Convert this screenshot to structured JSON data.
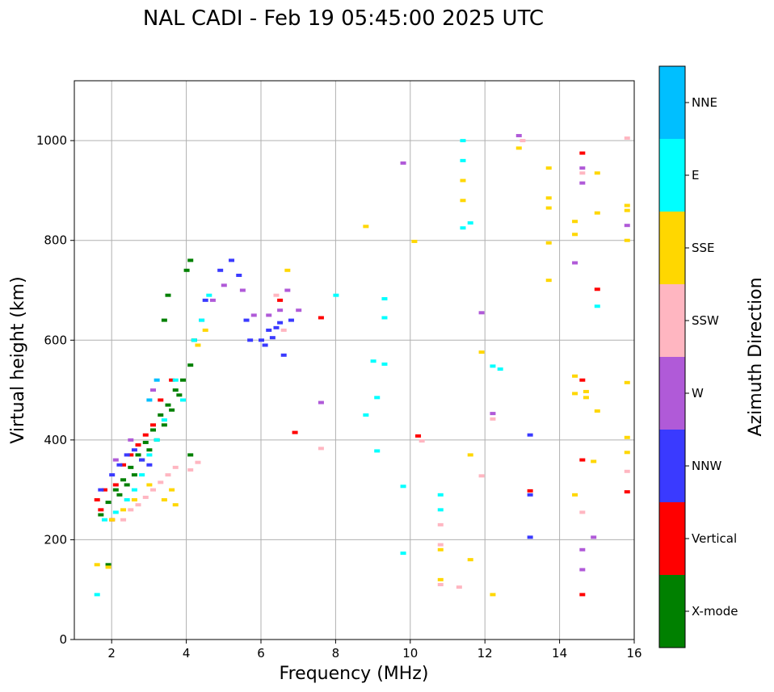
{
  "chart_data": {
    "type": "scatter",
    "title": "NAL CADI - Feb 19 05:45:00 2025 UTC",
    "xlabel": "Frequency (MHz)",
    "ylabel": "Virtual height (km)",
    "xlim": [
      1,
      16
    ],
    "ylim": [
      0,
      1120
    ],
    "xticks": [
      2,
      4,
      6,
      8,
      10,
      12,
      14,
      16
    ],
    "xtick_labels": [
      "2",
      "4",
      "6",
      "8",
      "10",
      "12",
      "14",
      "16"
    ],
    "yticks": [
      0,
      200,
      400,
      600,
      800,
      1000
    ],
    "ytick_labels": [
      "0",
      "200",
      "400",
      "600",
      "800",
      "1000"
    ],
    "grid": true,
    "colorbar": {
      "title": "Azimuth Direction",
      "categories": [
        "X-mode",
        "Vertical",
        "NNW",
        "W",
        "SSW",
        "SSE",
        "E",
        "NNE"
      ],
      "colors": [
        "#008000",
        "#ff0000",
        "#3a3aff",
        "#b05ad8",
        "#ffb6c1",
        "#ffd700",
        "#00ffff",
        "#00bfff"
      ]
    },
    "series": [
      {
        "name": "X-mode",
        "points": [
          [
            1.7,
            250
          ],
          [
            1.9,
            275
          ],
          [
            2.1,
            300
          ],
          [
            2.3,
            320
          ],
          [
            2.5,
            345
          ],
          [
            2.7,
            370
          ],
          [
            2.9,
            395
          ],
          [
            3.1,
            420
          ],
          [
            3.3,
            450
          ],
          [
            3.5,
            470
          ],
          [
            3.7,
            500
          ],
          [
            3.9,
            520
          ],
          [
            4.1,
            550
          ],
          [
            4.2,
            600
          ],
          [
            3.4,
            640
          ],
          [
            3.5,
            690
          ],
          [
            4.0,
            740
          ],
          [
            4.1,
            760
          ],
          [
            2.6,
            330
          ],
          [
            2.8,
            360
          ],
          [
            3.0,
            380
          ],
          [
            3.2,
            400
          ],
          [
            3.4,
            430
          ],
          [
            3.6,
            460
          ],
          [
            3.8,
            490
          ],
          [
            2.2,
            290
          ],
          [
            2.4,
            310
          ],
          [
            1.9,
            150
          ],
          [
            4.1,
            370
          ]
        ]
      },
      {
        "name": "Vertical",
        "points": [
          [
            1.6,
            280
          ],
          [
            1.7,
            260
          ],
          [
            1.8,
            300
          ],
          [
            2.0,
            240
          ],
          [
            2.1,
            310
          ],
          [
            2.3,
            350
          ],
          [
            2.5,
            370
          ],
          [
            2.7,
            390
          ],
          [
            2.9,
            410
          ],
          [
            3.1,
            430
          ],
          [
            3.3,
            480
          ],
          [
            3.6,
            520
          ],
          [
            6.5,
            680
          ],
          [
            6.9,
            415
          ],
          [
            7.6,
            645
          ],
          [
            10.2,
            408
          ],
          [
            13.2,
            298
          ],
          [
            14.6,
            520
          ],
          [
            14.6,
            975
          ],
          [
            14.6,
            360
          ],
          [
            14.6,
            90
          ],
          [
            15.0,
            702
          ],
          [
            15.8,
            296
          ]
        ]
      },
      {
        "name": "NNW",
        "points": [
          [
            1.7,
            300
          ],
          [
            2.0,
            330
          ],
          [
            2.2,
            350
          ],
          [
            2.4,
            370
          ],
          [
            2.6,
            380
          ],
          [
            2.8,
            360
          ],
          [
            3.0,
            350
          ],
          [
            4.5,
            680
          ],
          [
            4.9,
            740
          ],
          [
            5.2,
            760
          ],
          [
            5.4,
            730
          ],
          [
            6.0,
            600
          ],
          [
            6.1,
            590
          ],
          [
            6.2,
            620
          ],
          [
            6.3,
            605
          ],
          [
            6.4,
            625
          ],
          [
            6.5,
            635
          ],
          [
            5.7,
            600
          ],
          [
            5.6,
            640
          ],
          [
            6.8,
            640
          ],
          [
            13.2,
            410
          ],
          [
            13.2,
            205
          ],
          [
            13.2,
            290
          ],
          [
            6.6,
            570
          ]
        ]
      },
      {
        "name": "W",
        "points": [
          [
            2.1,
            360
          ],
          [
            2.5,
            400
          ],
          [
            3.1,
            500
          ],
          [
            4.4,
            640
          ],
          [
            4.7,
            680
          ],
          [
            5.0,
            710
          ],
          [
            5.5,
            700
          ],
          [
            5.8,
            650
          ],
          [
            6.2,
            650
          ],
          [
            6.5,
            660
          ],
          [
            6.7,
            700
          ],
          [
            7.0,
            660
          ],
          [
            9.8,
            955
          ],
          [
            11.9,
            655
          ],
          [
            12.2,
            453
          ],
          [
            12.9,
            1010
          ],
          [
            14.4,
            755
          ],
          [
            14.6,
            945
          ],
          [
            14.6,
            915
          ],
          [
            14.6,
            180
          ],
          [
            14.6,
            140
          ],
          [
            14.9,
            205
          ],
          [
            15.8,
            830
          ],
          [
            7.6,
            475
          ]
        ]
      },
      {
        "name": "SSW",
        "points": [
          [
            2.3,
            240
          ],
          [
            2.5,
            260
          ],
          [
            2.7,
            270
          ],
          [
            2.9,
            285
          ],
          [
            3.1,
            300
          ],
          [
            3.3,
            315
          ],
          [
            3.5,
            330
          ],
          [
            3.7,
            345
          ],
          [
            4.1,
            340
          ],
          [
            4.3,
            355
          ],
          [
            6.4,
            690
          ],
          [
            6.6,
            620
          ],
          [
            7.6,
            383
          ],
          [
            10.3,
            398
          ],
          [
            10.8,
            110
          ],
          [
            10.8,
            190
          ],
          [
            10.8,
            230
          ],
          [
            11.3,
            105
          ],
          [
            11.9,
            328
          ],
          [
            12.2,
            442
          ],
          [
            13.0,
            1000
          ],
          [
            14.6,
            255
          ],
          [
            14.6,
            935
          ],
          [
            15.8,
            337
          ],
          [
            15.8,
            1005
          ]
        ]
      },
      {
        "name": "SSE",
        "points": [
          [
            1.6,
            150
          ],
          [
            1.9,
            145
          ],
          [
            2.0,
            240
          ],
          [
            2.3,
            260
          ],
          [
            2.6,
            280
          ],
          [
            3.0,
            310
          ],
          [
            3.4,
            280
          ],
          [
            3.6,
            300
          ],
          [
            3.7,
            270
          ],
          [
            4.3,
            590
          ],
          [
            4.5,
            620
          ],
          [
            6.7,
            740
          ],
          [
            8.8,
            828
          ],
          [
            10.1,
            798
          ],
          [
            10.8,
            120
          ],
          [
            10.8,
            180
          ],
          [
            11.4,
            880
          ],
          [
            11.4,
            920
          ],
          [
            11.6,
            370
          ],
          [
            11.6,
            160
          ],
          [
            11.9,
            576
          ],
          [
            12.2,
            90
          ],
          [
            12.9,
            985
          ],
          [
            13.7,
            720
          ],
          [
            13.7,
            795
          ],
          [
            13.7,
            865
          ],
          [
            13.7,
            885
          ],
          [
            13.7,
            945
          ],
          [
            14.4,
            838
          ],
          [
            14.4,
            812
          ],
          [
            14.4,
            528
          ],
          [
            14.4,
            493
          ],
          [
            14.4,
            290
          ],
          [
            14.7,
            497
          ],
          [
            14.7,
            485
          ],
          [
            14.9,
            357
          ],
          [
            15.0,
            458
          ],
          [
            15.0,
            935
          ],
          [
            15.0,
            855
          ],
          [
            15.8,
            405
          ],
          [
            15.8,
            375
          ],
          [
            15.8,
            515
          ],
          [
            15.8,
            800
          ],
          [
            15.8,
            860
          ],
          [
            15.8,
            870
          ]
        ]
      },
      {
        "name": "E",
        "points": [
          [
            1.6,
            90
          ],
          [
            1.8,
            240
          ],
          [
            2.1,
            255
          ],
          [
            2.4,
            280
          ],
          [
            2.6,
            300
          ],
          [
            2.8,
            330
          ],
          [
            3.0,
            370
          ],
          [
            3.2,
            400
          ],
          [
            3.4,
            440
          ],
          [
            3.7,
            520
          ],
          [
            3.9,
            480
          ],
          [
            4.2,
            600
          ],
          [
            4.4,
            640
          ],
          [
            4.6,
            690
          ],
          [
            8.0,
            690
          ],
          [
            8.8,
            450
          ],
          [
            9.0,
            558
          ],
          [
            9.1,
            485
          ],
          [
            9.1,
            378
          ],
          [
            9.3,
            645
          ],
          [
            9.3,
            552
          ],
          [
            9.3,
            683
          ],
          [
            9.8,
            173
          ],
          [
            9.8,
            307
          ],
          [
            10.8,
            260
          ],
          [
            10.8,
            290
          ],
          [
            11.4,
            825
          ],
          [
            11.4,
            960
          ],
          [
            11.4,
            1000
          ],
          [
            11.6,
            835
          ],
          [
            12.2,
            548
          ],
          [
            12.4,
            542
          ],
          [
            15.0,
            668
          ]
        ]
      },
      {
        "name": "NNE",
        "points": [
          [
            3.0,
            480
          ],
          [
            3.2,
            520
          ]
        ]
      }
    ]
  }
}
